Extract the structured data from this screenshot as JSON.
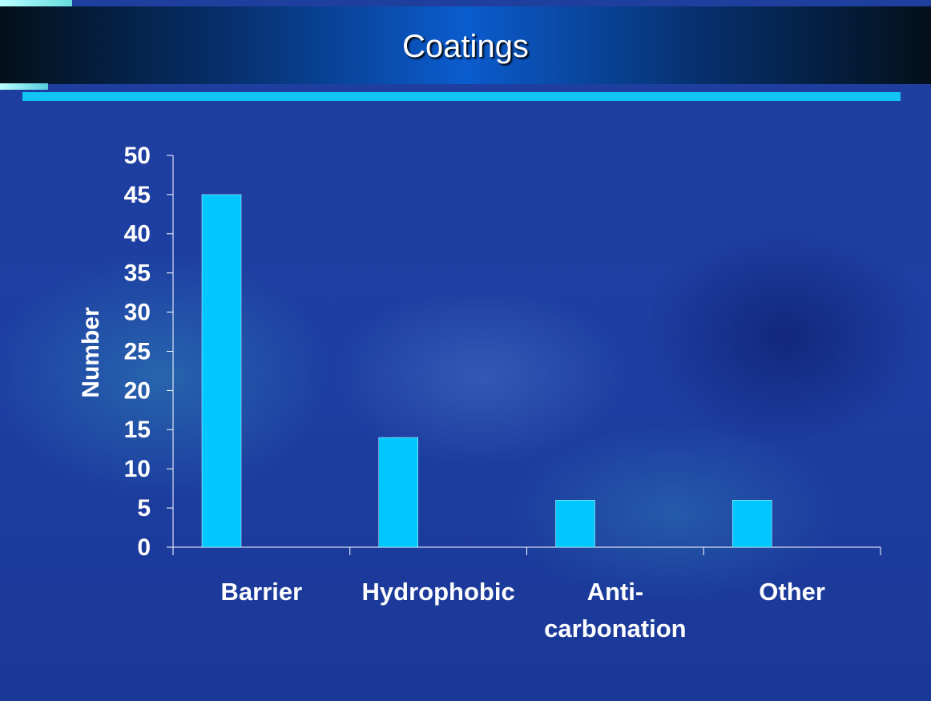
{
  "chart_data": {
    "type": "bar",
    "title": "Coatings",
    "y_label": "Number",
    "categories": [
      "Barrier",
      "Hydrophobic",
      "Anti-carbonation",
      "Other"
    ],
    "values": [
      45,
      14,
      6,
      6
    ],
    "color": "#00c8ff",
    "ylim": [
      0,
      50
    ],
    "yticks": [
      0,
      5,
      10,
      15,
      20,
      25,
      30,
      35,
      40,
      45,
      50
    ],
    "grid": false
  }
}
